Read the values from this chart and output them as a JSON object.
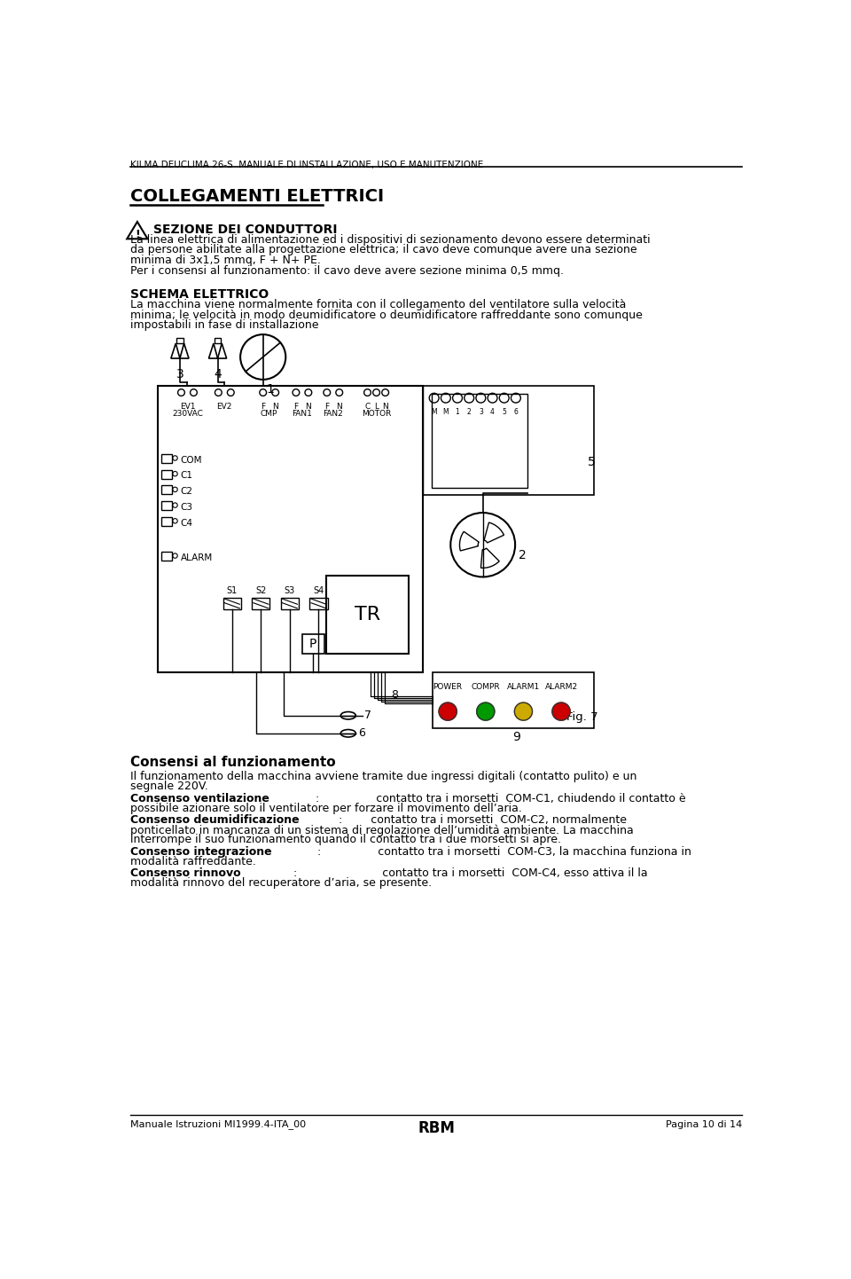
{
  "header_text": "KILMA DEUCLIMA 26-S  MANUALE DI INSTALLAZIONE, USO E MANUTENZIONE",
  "title": "COLLEGAMENTI ELETTRICI",
  "warning_title": "SEZIONE DEI CONDUTTORI",
  "warning_text1": "La linea elettrica di alimentazione ed i dispositivi di sezionamento devono essere determinati",
  "warning_text2": "da persone abilitate alla progettazione elettrica; il cavo deve comunque avere una sezione",
  "warning_text3": "minima di 3x1,5 mmq, F + N+ PE.",
  "warning_text4": "Per i consensi al funzionamento: il cavo deve avere sezione minima 0,5 mmq.",
  "schema_title": "SCHEMA ELETTRICO",
  "schema_text1": "La macchina viene normalmente fornita con il collegamento del ventilatore sulla velocità",
  "schema_text2": "minima; le velocità in modo deumidificatore o deumidificatore raffreddante sono comunque",
  "schema_text3": "impostabili in fase di installazione",
  "consensi_title": "Consensi al funzionamento",
  "consensi_p1a": "Il funzionamento della macchina avviene tramite due ingressi digitali (contatto pulito) e un",
  "consensi_p1b": "segnale 220V.",
  "consensi_v_bold": "Consenso ventilazione",
  "consensi_v_text1": ":                contatto tra i morsetti  COM-C1, chiudendo il contatto è",
  "consensi_v_text2": "possibile azionare solo il ventilatore per forzare il movimento dell’aria.",
  "consensi_d_bold": "Consenso deumidificazione",
  "consensi_d_text1": ":        contatto tra i morsetti  COM-C2, normalmente",
  "consensi_d_text2": "ponticellato in mancanza di un sistema di regolazione dell’umidità ambiente. La macchina",
  "consensi_d_text3": "interrompe il suo funzionamento quando il contatto tra i due morsetti si apre.",
  "consensi_i_bold": "Consenso integrazione",
  "consensi_i_text1": ":                contatto tra i morsetti  COM-C3, la macchina funziona in",
  "consensi_i_text2": "modalità raffreddante.",
  "consensi_r_bold": "Consenso rinnovo",
  "consensi_r_text1": ":                        contatto tra i morsetti  COM-C4, esso attiva il la",
  "consensi_r_text2": "modalità rinnovo del recuperatore d’aria, se presente.",
  "footer_left": "Manuale Istruzioni MI1999.4-ITA_00",
  "footer_center": "RBM",
  "footer_right": "Pagina 10 di 14",
  "fig_label": "Fig. 7",
  "bg_color": "#ffffff",
  "text_color": "#000000",
  "led_colors": [
    "#cc0000",
    "#009900",
    "#ccaa00",
    "#cc0000"
  ],
  "led_labels": [
    "POWER",
    "COMPR",
    "ALARM1",
    "ALARM2"
  ]
}
